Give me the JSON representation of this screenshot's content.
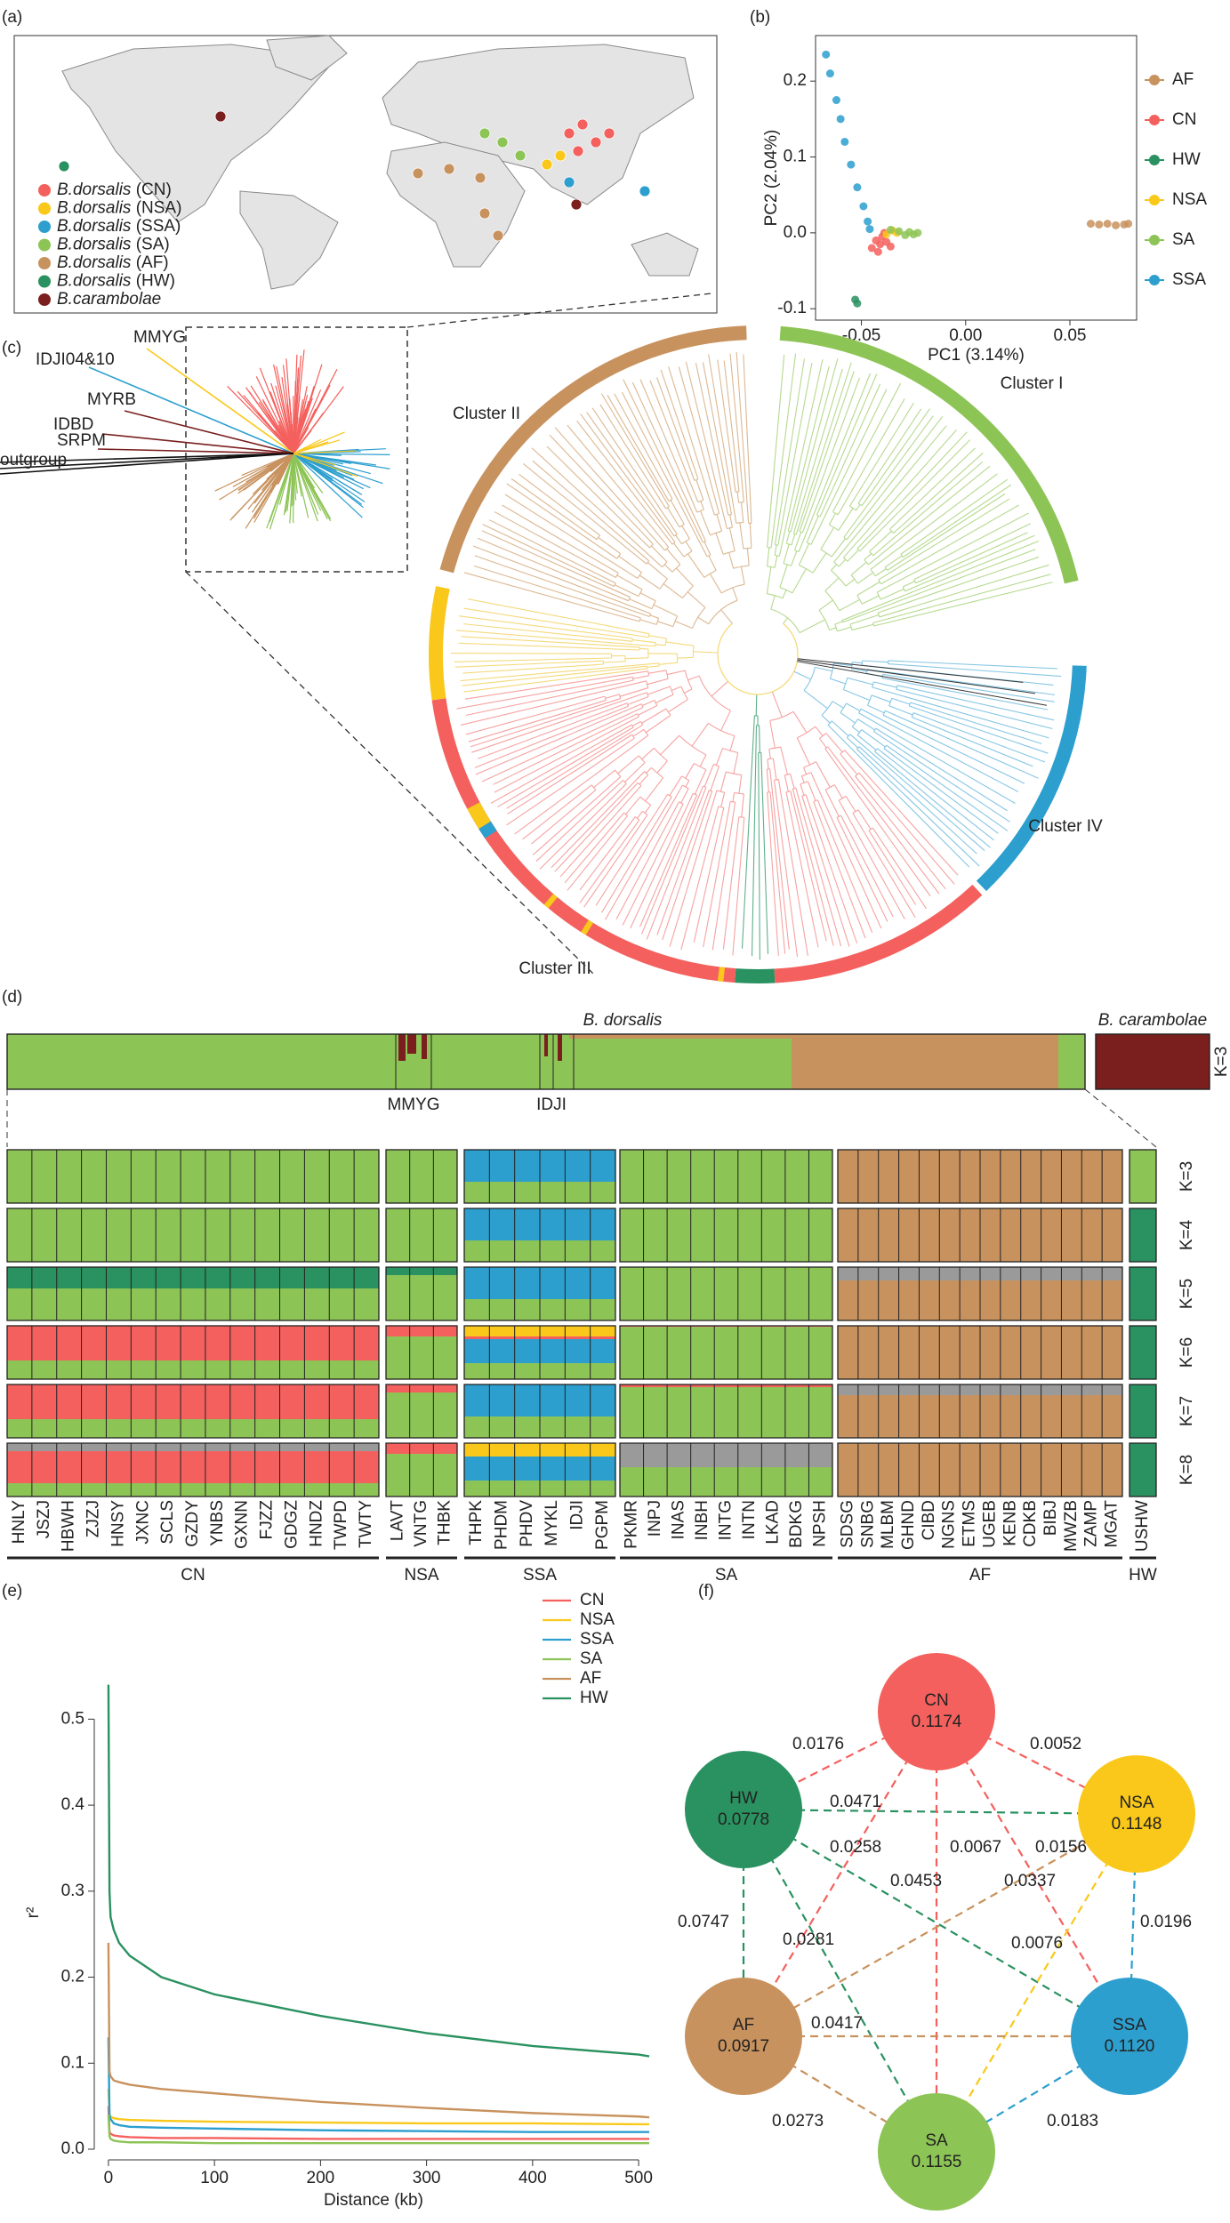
{
  "panel_labels": [
    "(a)",
    "(b)",
    "(c)",
    "(d)",
    "(e)",
    "(f)"
  ],
  "map": {
    "legend": [
      {
        "species": "B.dorsalis",
        "group": "(CN)",
        "color": "#f4605d"
      },
      {
        "species": "B.dorsalis",
        "group": "(NSA)",
        "color": "#f9c81a"
      },
      {
        "species": "B.dorsalis",
        "group": "(SSA)",
        "color": "#2c9fcf"
      },
      {
        "species": "B.dorsalis",
        "group": "(SA)",
        "color": "#8dc456"
      },
      {
        "species": "B.dorsalis",
        "group": "(AF)",
        "color": "#c8925e"
      },
      {
        "species": "B.dorsalis",
        "group": "(HW)",
        "color": "#2a9160"
      },
      {
        "species": "B.carambolae",
        "color": "#7a1e1e"
      }
    ]
  },
  "chart_data": [
    {
      "type": "scatter",
      "xlabel": "PC1 (3.14%)",
      "ylabel": "PC2 (2.04%)",
      "xlim": [
        -0.072,
        0.082
      ],
      "ylim": [
        -0.115,
        0.26
      ],
      "xticks": [
        -0.05,
        {
          "value": 0,
          "label": "0.00"
        },
        0.05
      ],
      "yticks": [
        -0.1,
        {
          "value": 0,
          "label": "0.0"
        },
        0.1,
        0.2
      ],
      "series": [
        {
          "name": "AF",
          "color": "#c8925e",
          "x": [
            0.06,
            0.064,
            0.068,
            0.072,
            0.076,
            0.078
          ],
          "y": [
            0.012,
            0.011,
            0.012,
            0.01,
            0.011,
            0.012
          ]
        },
        {
          "name": "CN",
          "color": "#f4605d",
          "x": [
            -0.045,
            -0.043,
            -0.041,
            -0.04,
            -0.038,
            -0.036,
            -0.039,
            -0.042
          ],
          "y": [
            -0.02,
            -0.01,
            -0.015,
            -0.005,
            -0.012,
            -0.018,
            0,
            -0.025
          ]
        },
        {
          "name": "HW",
          "color": "#2a9160",
          "x": [
            -0.053,
            -0.052
          ],
          "y": [
            -0.088,
            -0.093
          ]
        },
        {
          "name": "NSA",
          "color": "#f9c81a",
          "x": [
            -0.038,
            -0.035,
            -0.033
          ],
          "y": [
            -0.002,
            0.003,
            0
          ]
        },
        {
          "name": "SA",
          "color": "#8dc456",
          "x": [
            -0.036,
            -0.032,
            -0.029,
            -0.027,
            -0.025,
            -0.023
          ],
          "y": [
            0.004,
            0.002,
            -0.003,
            0.001,
            -0.002,
            0
          ]
        },
        {
          "name": "SSA",
          "color": "#2c9fcf",
          "x": [
            -0.067,
            -0.065,
            -0.062,
            -0.06,
            -0.058,
            -0.055,
            -0.052,
            -0.049,
            -0.047,
            -0.046
          ],
          "y": [
            0.235,
            0.21,
            0.175,
            0.15,
            0.12,
            0.09,
            0.06,
            0.035,
            0.015,
            0.005
          ]
        }
      ]
    },
    {
      "type": "line",
      "xlabel": "Distance (kb)",
      "ylabel": "r²",
      "xlim": [
        -10,
        510
      ],
      "ylim": [
        0,
        0.55
      ],
      "xticks": [
        0,
        100,
        200,
        300,
        400,
        500
      ],
      "yticks": [
        {
          "value": 0,
          "label": "0.0"
        },
        0.1,
        0.2,
        0.3,
        0.4,
        0.5
      ],
      "x": [
        0,
        1,
        2,
        5,
        10,
        20,
        50,
        100,
        200,
        300,
        400,
        500,
        510
      ],
      "series": [
        {
          "name": "CN",
          "color": "#f4605d",
          "values": [
            0.05,
            0.02,
            0.018,
            0.016,
            0.015,
            0.014,
            0.013,
            0.013,
            0.012,
            0.012,
            0.012,
            0.012,
            0.012
          ]
        },
        {
          "name": "NSA",
          "color": "#f9c81a",
          "values": [
            0.07,
            0.04,
            0.038,
            0.036,
            0.035,
            0.034,
            0.033,
            0.032,
            0.031,
            0.03,
            0.03,
            0.029,
            0.029
          ]
        },
        {
          "name": "SSA",
          "color": "#2c9fcf",
          "values": [
            0.13,
            0.04,
            0.035,
            0.03,
            0.028,
            0.026,
            0.025,
            0.024,
            0.022,
            0.021,
            0.02,
            0.02,
            0.02
          ]
        },
        {
          "name": "SA",
          "color": "#8dc456",
          "values": [
            0.04,
            0.015,
            0.012,
            0.01,
            0.009,
            0.008,
            0.008,
            0.007,
            0.007,
            0.007,
            0.007,
            0.007,
            0.007
          ]
        },
        {
          "name": "AF",
          "color": "#c8925e",
          "values": [
            0.24,
            0.09,
            0.085,
            0.08,
            0.078,
            0.075,
            0.07,
            0.065,
            0.055,
            0.048,
            0.042,
            0.038,
            0.037
          ]
        },
        {
          "name": "HW",
          "color": "#2a9160",
          "values": [
            0.54,
            0.3,
            0.27,
            0.255,
            0.24,
            0.225,
            0.2,
            0.18,
            0.155,
            0.135,
            0.12,
            0.11,
            0.108
          ]
        }
      ]
    }
  ],
  "tree": {
    "clusters": [
      "Cluster I",
      "Cluster II",
      "Cluster III",
      "Cluster IV"
    ],
    "inset_labels": [
      {
        "text": "MMYG",
        "color": "#f9c81a"
      },
      {
        "text": "IDJI04&10",
        "color": "#2c9fcf"
      },
      {
        "text": "MYRB",
        "color": "#7a1e1e"
      },
      {
        "text": "IDBD",
        "color": "#7a1e1e"
      },
      {
        "text": "SRPM",
        "color": "#7a1e1e"
      },
      {
        "text": "outgroup",
        "color": "#000000"
      }
    ]
  },
  "structure": {
    "species": [
      "B. dorsalis",
      "B. carambolae"
    ],
    "top_label": "K=3",
    "top_markers": [
      {
        "text": "MMYG",
        "color": "#f9c81a"
      },
      {
        "text": "IDJI",
        "color": "#2c9fcf"
      }
    ],
    "groups": [
      {
        "name": "CN",
        "color": "#f4605d",
        "populations": [
          "HNLY",
          "JSZJ",
          "HBWH",
          "ZJZJ",
          "HNSY",
          "JXNC",
          "SCLS",
          "GZDY",
          "YNBS",
          "GXNN",
          "FJZZ",
          "GDGZ",
          "HNDZ",
          "TWPD",
          "TWTY"
        ]
      },
      {
        "name": "NSA",
        "color": "#f9c81a",
        "populations": [
          "LAVT",
          "VNTG",
          "THBK"
        ]
      },
      {
        "name": "SSA",
        "color": "#2c9fcf",
        "populations": [
          "THPK",
          "PHDM",
          "PHDV",
          "MYKL",
          "IDJI",
          "PGPM"
        ]
      },
      {
        "name": "SA",
        "color": "#8dc456",
        "populations": [
          "PKMR",
          "INPJ",
          "INAS",
          "INBH",
          "INTG",
          "INTN",
          "LKAD",
          "BDKG",
          "NPSH"
        ]
      },
      {
        "name": "AF",
        "color": "#c8925e",
        "populations": [
          "SDSG",
          "SNBG",
          "MLBM",
          "GHND",
          "CIBD",
          "NGNS",
          "ETMS",
          "UGEB",
          "KENB",
          "CDKB",
          "BIBJ",
          "MWZB",
          "ZAMP",
          "MGAT"
        ]
      },
      {
        "name": "HW",
        "color": "#2a9160",
        "populations": [
          "USHW"
        ]
      }
    ],
    "rows": [
      {
        "label": "K=3",
        "colors": [
          "#8dc456",
          "#2c9fcf",
          "#c8925e"
        ],
        "fractions": [
          [
            1,
            0,
            0
          ],
          [
            1,
            0,
            0
          ],
          [
            0.4,
            0.6,
            0
          ],
          [
            1,
            0,
            0
          ],
          [
            0,
            0,
            1
          ],
          [
            1,
            0,
            0
          ]
        ]
      },
      {
        "label": "K=4",
        "colors": [
          "#8dc456",
          "#2c9fcf",
          "#c8925e",
          "#2a9160"
        ],
        "fractions": [
          [
            1,
            0,
            0,
            0
          ],
          [
            1,
            0,
            0,
            0
          ],
          [
            0.4,
            0.6,
            0,
            0
          ],
          [
            1,
            0,
            0,
            0
          ],
          [
            0,
            0,
            1,
            0
          ],
          [
            0,
            0,
            0,
            1
          ]
        ]
      },
      {
        "label": "K=5",
        "colors": [
          "#8dc456",
          "#2c9fcf",
          "#c8925e",
          "#2a9160",
          "#9a9a9a"
        ],
        "fractions": [
          [
            0.6,
            0,
            0,
            0.4,
            0
          ],
          [
            0.85,
            0,
            0,
            0.15,
            0
          ],
          [
            0.4,
            0.6,
            0,
            0,
            0
          ],
          [
            1,
            0,
            0,
            0,
            0
          ],
          [
            0,
            0,
            0.75,
            0,
            0.25
          ],
          [
            0,
            0,
            0,
            1,
            0
          ]
        ]
      },
      {
        "label": "K=6",
        "colors": [
          "#8dc456",
          "#2c9fcf",
          "#c8925e",
          "#2a9160",
          "#f4605d",
          "#f9c81a"
        ],
        "fractions": [
          [
            0.35,
            0,
            0,
            0,
            0.65,
            0
          ],
          [
            0.8,
            0,
            0,
            0,
            0.2,
            0
          ],
          [
            0.3,
            0.45,
            0,
            0,
            0.05,
            0.2
          ],
          [
            0.98,
            0,
            0,
            0,
            0.02,
            0
          ],
          [
            0,
            0,
            1,
            0,
            0,
            0
          ],
          [
            0,
            0,
            0,
            1,
            0,
            0
          ]
        ]
      },
      {
        "label": "K=7",
        "colors": [
          "#8dc456",
          "#2c9fcf",
          "#c8925e",
          "#2a9160",
          "#f4605d",
          "#9a9a9a"
        ],
        "fractions": [
          [
            0.35,
            0,
            0,
            0,
            0.65,
            0
          ],
          [
            0.85,
            0,
            0,
            0,
            0.15,
            0
          ],
          [
            0.4,
            0.6,
            0,
            0,
            0,
            0
          ],
          [
            0.95,
            0,
            0,
            0,
            0.05,
            0
          ],
          [
            0,
            0,
            0.8,
            0,
            0,
            0.2
          ],
          [
            0,
            0,
            0,
            1,
            0,
            0
          ]
        ]
      },
      {
        "label": "K=8",
        "colors": [
          "#8dc456",
          "#2c9fcf",
          "#c8925e",
          "#2a9160",
          "#f4605d",
          "#9a9a9a",
          "#f9c81a"
        ],
        "fractions": [
          [
            0.25,
            0,
            0,
            0,
            0.6,
            0.15,
            0
          ],
          [
            0.8,
            0,
            0,
            0,
            0.2,
            0,
            0
          ],
          [
            0.3,
            0.45,
            0,
            0,
            0,
            0,
            0.25
          ],
          [
            0.55,
            0,
            0,
            0,
            0,
            0.45,
            0
          ],
          [
            0,
            0,
            1,
            0,
            0,
            0,
            0
          ],
          [
            0,
            0,
            0,
            1,
            0,
            0,
            0
          ]
        ]
      }
    ]
  },
  "network": {
    "nodes": [
      {
        "name": "CN",
        "value": "0.1174",
        "color": "#f4605d"
      },
      {
        "name": "NSA",
        "value": "0.1148",
        "color": "#f9c81a"
      },
      {
        "name": "HW",
        "value": "0.0778",
        "color": "#2a9160"
      },
      {
        "name": "AF",
        "value": "0.0917",
        "color": "#c8925e"
      },
      {
        "name": "SSA",
        "value": "0.1120",
        "color": "#2c9fcf"
      },
      {
        "name": "SA",
        "value": "0.1155",
        "color": "#8dc456"
      }
    ],
    "edges": [
      {
        "from": "CN",
        "to": "HW",
        "value": "0.0176",
        "color": "#f4605d"
      },
      {
        "from": "CN",
        "to": "NSA",
        "value": "0.0052",
        "color": "#f4605d"
      },
      {
        "from": "HW",
        "to": "NSA",
        "value": "0.0471",
        "color": "#2a9160"
      },
      {
        "from": "CN",
        "to": "AF",
        "value": "0.0258",
        "color": "#f4605d"
      },
      {
        "from": "CN",
        "to": "SA",
        "value": "0.0067",
        "color": "#f4605d"
      },
      {
        "from": "CN",
        "to": "SSA",
        "value": "0.0156",
        "color": "#f4605d"
      },
      {
        "from": "HW",
        "to": "SSA",
        "value": "0.0453",
        "color": "#2a9160"
      },
      {
        "from": "NSA",
        "to": "AF",
        "value": "0.0337",
        "color": "#c8925e"
      },
      {
        "from": "HW",
        "to": "AF",
        "value": "0.0747",
        "color": "#2a9160"
      },
      {
        "from": "NSA",
        "to": "SSA",
        "value": "0.0196",
        "color": "#2c9fcf"
      },
      {
        "from": "HW",
        "to": "SA",
        "value": "0.0281",
        "color": "#2a9160"
      },
      {
        "from": "NSA",
        "to": "SA",
        "value": "0.0076",
        "color": "#f9c81a"
      },
      {
        "from": "AF",
        "to": "SSA",
        "value": "0.0417",
        "color": "#c8925e"
      },
      {
        "from": "AF",
        "to": "SA",
        "value": "0.0273",
        "color": "#c8925e"
      },
      {
        "from": "SSA",
        "to": "SA",
        "value": "0.0183",
        "color": "#2c9fcf",
        "label_color": "#8dc456"
      }
    ]
  }
}
